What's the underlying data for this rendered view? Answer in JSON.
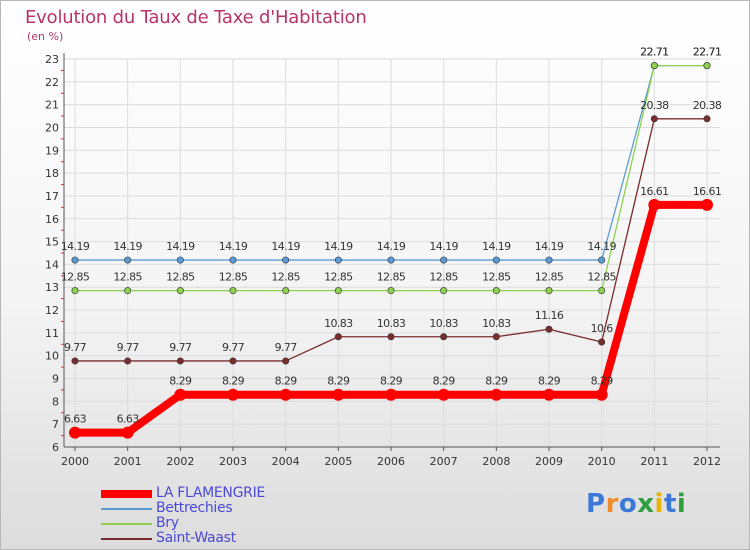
{
  "title": "Evolution du Taux de Taxe d'Habitation",
  "unit_label": "(en %)",
  "logo": {
    "letters": [
      "P",
      "r",
      "o",
      "x",
      "i",
      "t",
      "i"
    ],
    "colors": [
      "#3b78d8",
      "#f28c28",
      "#3b78d8",
      "#2e9e3e",
      "#e8b400",
      "#3b78d8",
      "#2e9e3e"
    ]
  },
  "chart_data": {
    "type": "line",
    "title": "Evolution du Taux de Taxe d'Habitation",
    "ylabel": "(en %)",
    "xlabel": "",
    "categories": [
      "2000",
      "2001",
      "2002",
      "2003",
      "2004",
      "2005",
      "2006",
      "2007",
      "2008",
      "2009",
      "2010",
      "2011",
      "2012"
    ],
    "ylim": [
      6,
      23
    ],
    "yticks": [
      "6",
      "7",
      "8",
      "9",
      "10",
      "11",
      "12",
      "13",
      "14",
      "15",
      "16",
      "17",
      "18",
      "19",
      "20",
      "21",
      "22",
      "23"
    ],
    "grid": true,
    "legend_position": "bottom-left",
    "series": [
      {
        "name": "LA FLAMENGRIE",
        "color": "#ff0000",
        "values": [
          6.63,
          6.63,
          8.29,
          8.29,
          8.29,
          8.29,
          8.29,
          8.29,
          8.29,
          8.29,
          8.29,
          16.61,
          16.61
        ],
        "labels": [
          "6.63",
          "6.63",
          "8.29",
          "8.29",
          "8.29",
          "8.29",
          "8.29",
          "8.29",
          "8.29",
          "8.29",
          "8.29",
          "16.61",
          "16.61"
        ]
      },
      {
        "name": "Bettrechies",
        "color": "#5b9bd5",
        "values": [
          14.19,
          14.19,
          14.19,
          14.19,
          14.19,
          14.19,
          14.19,
          14.19,
          14.19,
          14.19,
          14.19,
          22.71,
          22.71
        ],
        "labels": [
          "14.19",
          "14.19",
          "14.19",
          "14.19",
          "14.19",
          "14.19",
          "14.19",
          "14.19",
          "14.19",
          "14.19",
          "14.19",
          "22.71",
          "22.71"
        ]
      },
      {
        "name": "Bry",
        "color": "#8fd14f",
        "values": [
          12.85,
          12.85,
          12.85,
          12.85,
          12.85,
          12.85,
          12.85,
          12.85,
          12.85,
          12.85,
          12.85,
          22.71,
          22.71
        ],
        "labels": [
          "12.85",
          "12.85",
          "12.85",
          "12.85",
          "12.85",
          "12.85",
          "12.85",
          "12.85",
          "12.85",
          "12.85",
          "12.85",
          "22.71",
          "22.71"
        ]
      },
      {
        "name": "Saint-Waast",
        "color": "#7b2c2c",
        "values": [
          9.77,
          9.77,
          9.77,
          9.77,
          9.77,
          10.83,
          10.83,
          10.83,
          10.83,
          11.16,
          10.6,
          20.38,
          20.38
        ],
        "labels": [
          "9.77",
          "9.77",
          "9.77",
          "9.77",
          "9.77",
          "10.83",
          "10.83",
          "10.83",
          "10.83",
          "11.16",
          "10.6",
          "20.38",
          "20.38"
        ]
      }
    ]
  }
}
